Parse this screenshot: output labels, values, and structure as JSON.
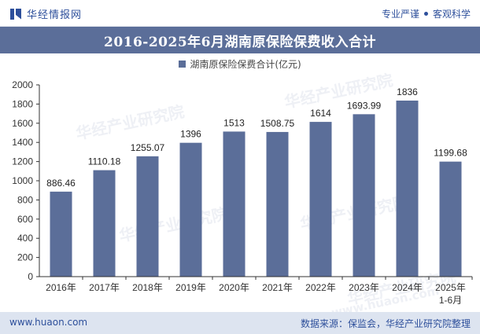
{
  "header": {
    "brand": "华经情报网",
    "tagline_1": "专业严谨",
    "tagline_2": "客观科学"
  },
  "footer": {
    "website": "www.huaon.com",
    "source": "数据来源：保监会，华经产业研究院整理"
  },
  "watermark": {
    "text": "华经产业研究院",
    "url": "www.huaon.com"
  },
  "colors": {
    "bar": "#5b6e99",
    "title_bg": "#5b6e99",
    "brand": "#2d4f9b",
    "footer_bg": "#dde4f0"
  },
  "chart_data": {
    "type": "bar",
    "title": "2016-2025年6月湖南原保险保费收入合计",
    "categories": [
      "2016年",
      "2017年",
      "2018年",
      "2019年",
      "2020年",
      "2021年",
      "2022年",
      "2023年",
      "2024年",
      "2025年\n1-6月"
    ],
    "series": [
      {
        "name": "湖南原保险保费合计(亿元)",
        "values": [
          886.46,
          1110.18,
          1255.07,
          1396,
          1513,
          1508.75,
          1614,
          1693.99,
          1836,
          1199.68
        ]
      }
    ],
    "value_labels": [
      "886.46",
      "1110.18",
      "1255.07",
      "1396",
      "1513",
      "1508.75",
      "1614",
      "1693.99",
      "1836",
      "1199.68"
    ],
    "yticks": [
      "0",
      "200",
      "400",
      "600",
      "800",
      "1000",
      "1200",
      "1400",
      "1600",
      "1800",
      "2000"
    ],
    "ylim": [
      0,
      2000
    ],
    "grid": false,
    "legend_position": "top-center"
  }
}
